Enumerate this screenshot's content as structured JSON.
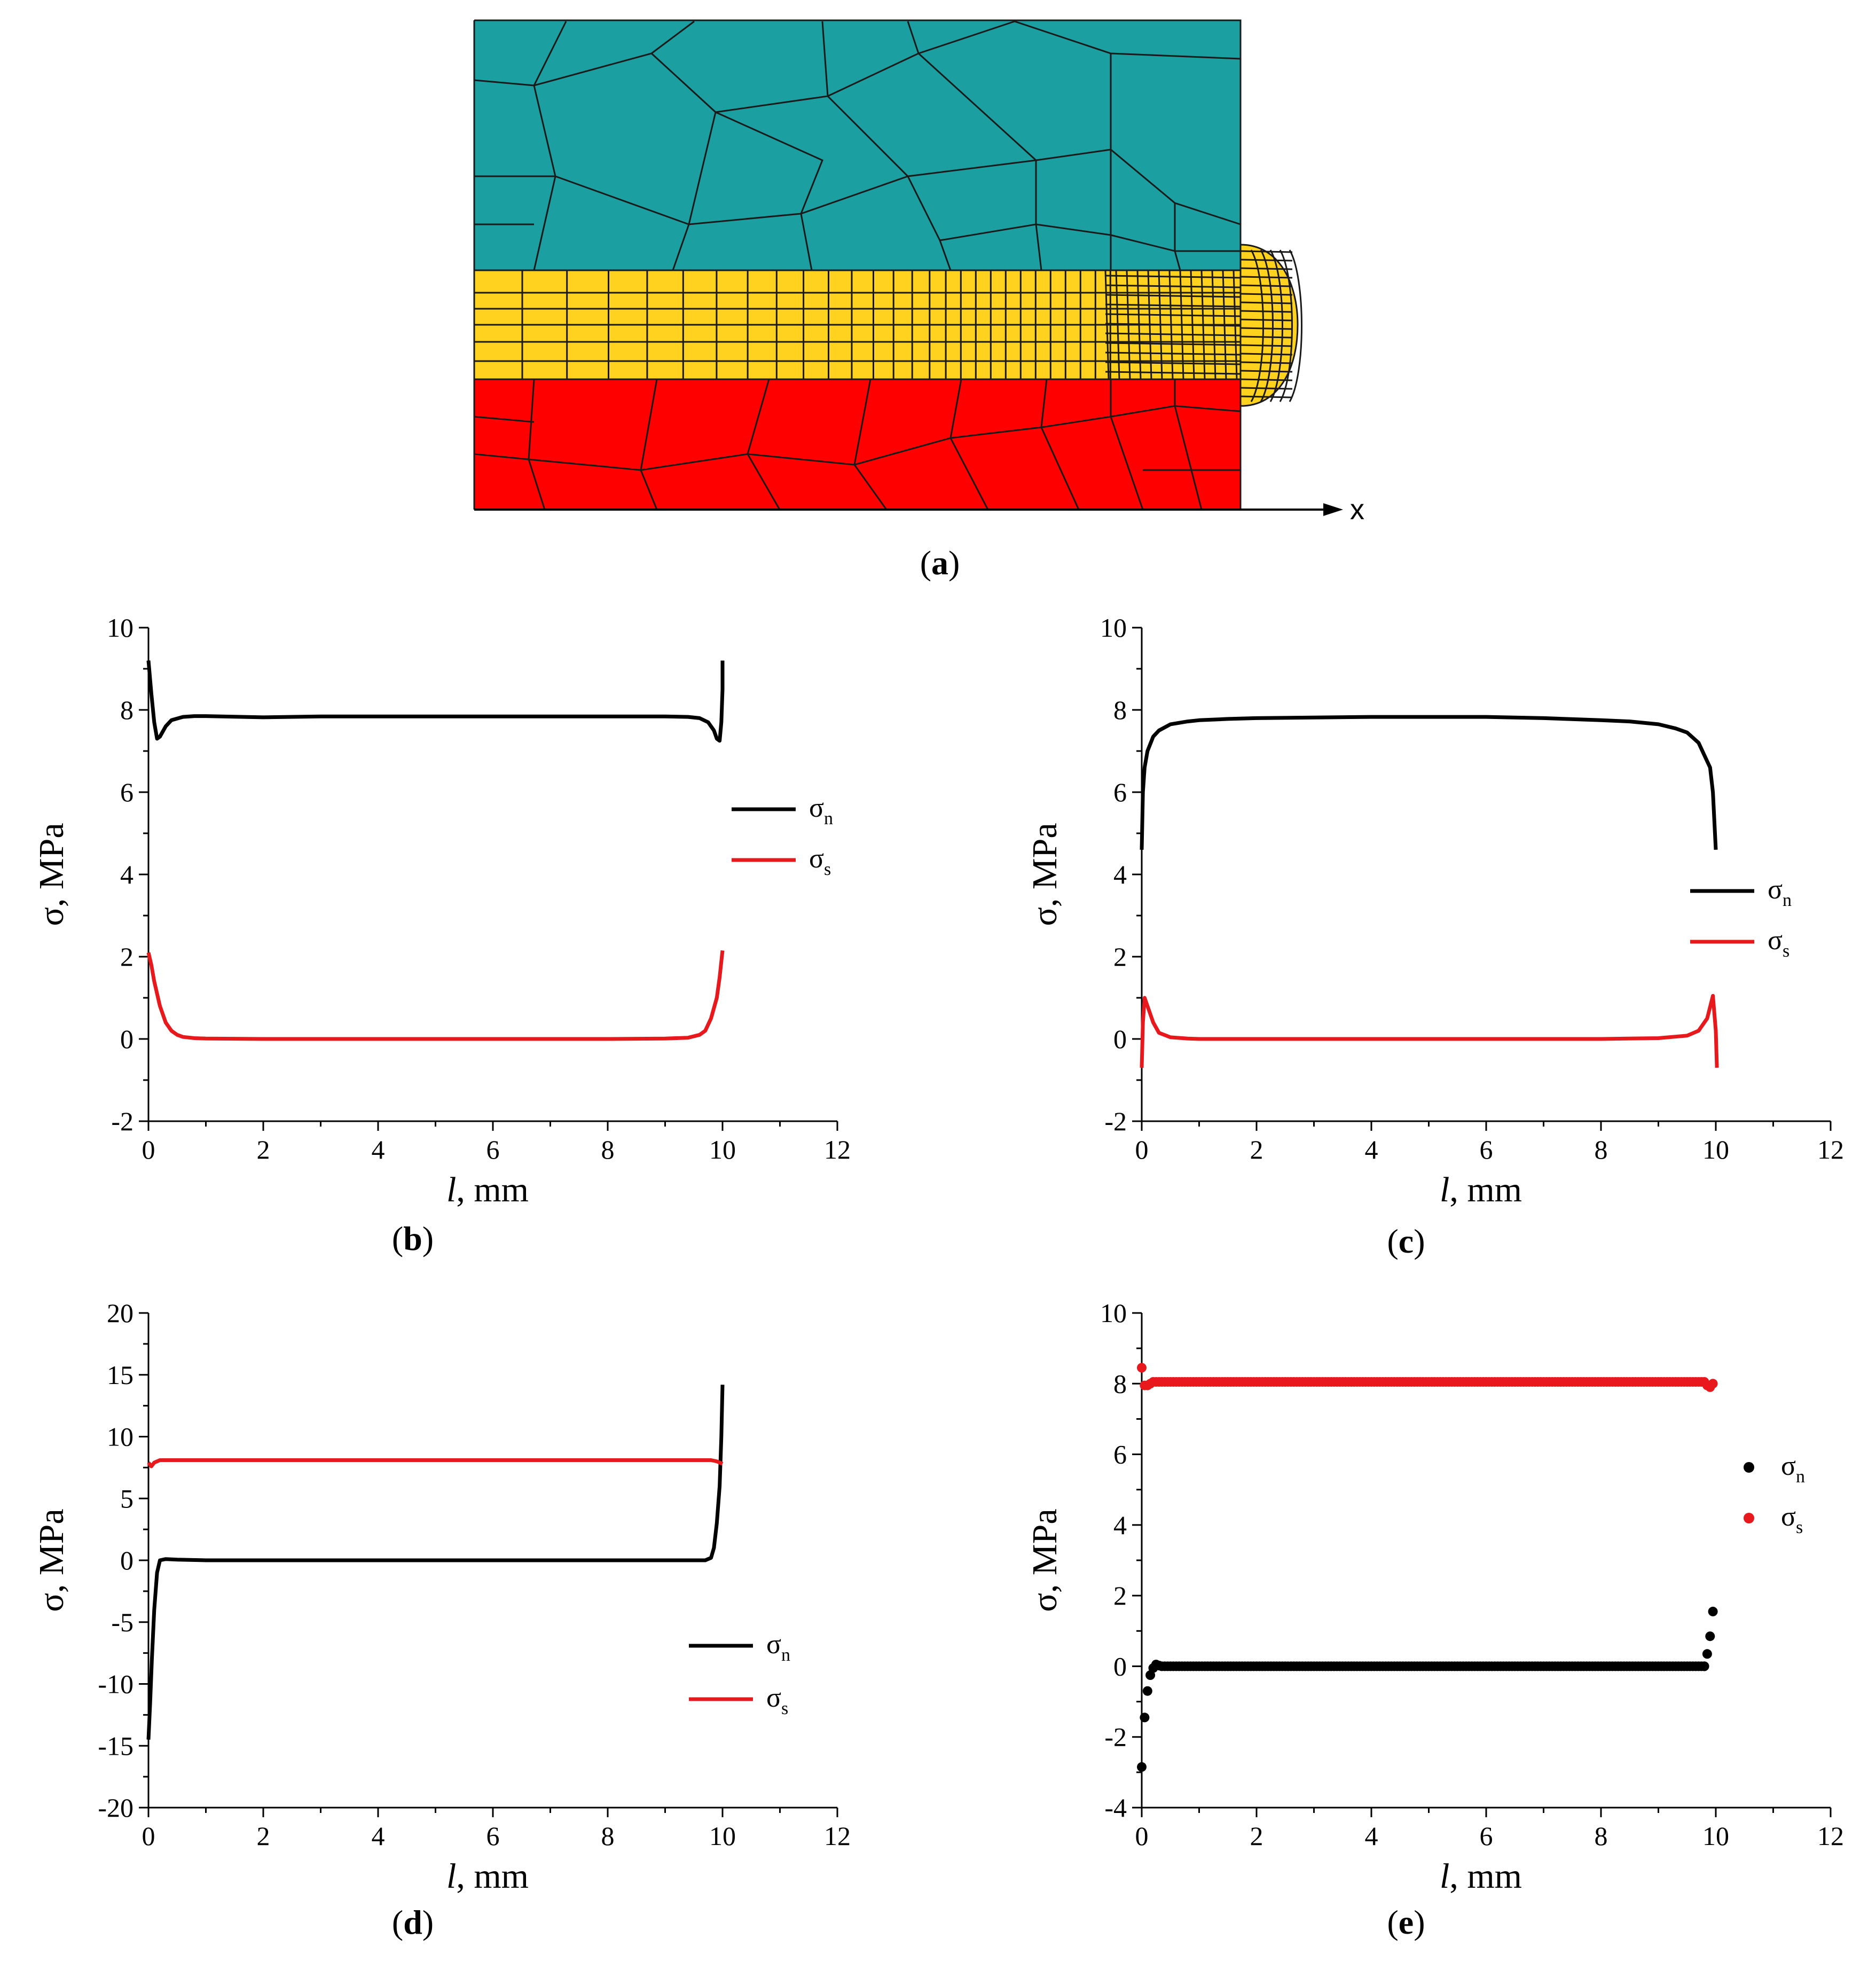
{
  "figure": {
    "panel_a": {
      "label_prefix": "(",
      "label": "a",
      "label_suffix": ")",
      "axis_label": "x",
      "colors": {
        "top": "#1b9fa0",
        "middle": "#ffd21f",
        "bottom": "#ff0000",
        "mesh": "#1a1a1a"
      }
    }
  },
  "chart_data": [
    {
      "id": "b",
      "type": "line",
      "label": "b",
      "xlabel_italic": "l",
      "xlabel_rest": ", mm",
      "ylabel": "σ, MPa",
      "xlim": [
        0,
        12
      ],
      "ylim": [
        -2,
        10
      ],
      "xticks": [
        "0",
        "2",
        "4",
        "6",
        "8",
        "10",
        "12"
      ],
      "yticks": [
        "-2",
        "0",
        "2",
        "4",
        "6",
        "8",
        "10"
      ],
      "legend": "right-middle",
      "series": [
        {
          "name": "σ",
          "sub": "n",
          "color": "#000000",
          "style": "line",
          "x": [
            0,
            0.05,
            0.1,
            0.15,
            0.2,
            0.3,
            0.4,
            0.6,
            0.8,
            1.0,
            2,
            3,
            4,
            5,
            6,
            7,
            8,
            9,
            9.4,
            9.6,
            9.75,
            9.85,
            9.9,
            9.95,
            9.98,
            10.0,
            10.0
          ],
          "y": [
            9.2,
            8.4,
            7.7,
            7.3,
            7.35,
            7.6,
            7.75,
            7.83,
            7.85,
            7.85,
            7.82,
            7.84,
            7.84,
            7.84,
            7.84,
            7.84,
            7.84,
            7.84,
            7.83,
            7.8,
            7.7,
            7.5,
            7.3,
            7.25,
            7.7,
            8.5,
            9.2
          ]
        },
        {
          "name": "σ",
          "sub": "s",
          "color": "#e8191d",
          "style": "line",
          "x": [
            0,
            0.05,
            0.1,
            0.2,
            0.3,
            0.4,
            0.5,
            0.6,
            0.8,
            1.0,
            2,
            4,
            6,
            8,
            9,
            9.4,
            9.6,
            9.7,
            9.8,
            9.9,
            9.95,
            10.0
          ],
          "y": [
            2.1,
            1.8,
            1.4,
            0.8,
            0.4,
            0.2,
            0.1,
            0.05,
            0.02,
            0.01,
            0,
            0,
            0,
            0,
            0.01,
            0.03,
            0.1,
            0.2,
            0.5,
            1.0,
            1.5,
            2.15
          ]
        }
      ]
    },
    {
      "id": "c",
      "type": "line",
      "label": "c",
      "xlabel_italic": "l",
      "xlabel_rest": ", mm",
      "ylabel": "σ, MPa",
      "xlim": [
        0,
        12
      ],
      "ylim": [
        -2,
        10
      ],
      "xticks": [
        "0",
        "2",
        "4",
        "6",
        "8",
        "10",
        "12"
      ],
      "yticks": [
        "-2",
        "0",
        "2",
        "4",
        "6",
        "8",
        "10"
      ],
      "legend": "right-middle",
      "series": [
        {
          "name": "σ",
          "sub": "n",
          "color": "#000000",
          "style": "line",
          "x": [
            0,
            0.02,
            0.05,
            0.1,
            0.2,
            0.3,
            0.5,
            0.8,
            1.0,
            1.5,
            2,
            4,
            6,
            7,
            8,
            8.5,
            9,
            9.3,
            9.5,
            9.7,
            9.8,
            9.9,
            9.95,
            10.0
          ],
          "y": [
            4.6,
            6.0,
            6.6,
            7.0,
            7.35,
            7.5,
            7.65,
            7.72,
            7.75,
            7.78,
            7.8,
            7.83,
            7.83,
            7.8,
            7.75,
            7.72,
            7.65,
            7.55,
            7.45,
            7.2,
            6.9,
            6.6,
            6.0,
            4.6
          ]
        },
        {
          "name": "σ",
          "sub": "s",
          "color": "#e8191d",
          "style": "line",
          "x": [
            0,
            0.02,
            0.05,
            0.1,
            0.2,
            0.3,
            0.5,
            0.8,
            1.0,
            2,
            4,
            6,
            8,
            9,
            9.5,
            9.7,
            9.85,
            9.95,
            10.0,
            10.02
          ],
          "y": [
            -0.7,
            0.4,
            1.0,
            0.8,
            0.4,
            0.15,
            0.04,
            0.01,
            0,
            0,
            0,
            0,
            0,
            0.02,
            0.08,
            0.2,
            0.5,
            1.05,
            0.2,
            -0.7
          ]
        }
      ]
    },
    {
      "id": "d",
      "type": "line",
      "label": "d",
      "xlabel_italic": "l",
      "xlabel_rest": ", mm",
      "ylabel": "σ, MPa",
      "xlim": [
        0,
        12
      ],
      "ylim": [
        -20,
        20
      ],
      "xticks": [
        "0",
        "2",
        "4",
        "6",
        "8",
        "10",
        "12"
      ],
      "yticks": [
        "-20",
        "-15",
        "-10",
        "-5",
        "0",
        "5",
        "10",
        "15",
        "20"
      ],
      "legend": "right-bottom",
      "series": [
        {
          "name": "σ",
          "sub": "n",
          "color": "#000000",
          "style": "line",
          "x": [
            0,
            0.03,
            0.06,
            0.1,
            0.15,
            0.2,
            0.3,
            0.5,
            1,
            2,
            4,
            6,
            8,
            9,
            9.5,
            9.7,
            9.8,
            9.85,
            9.9,
            9.95,
            9.98,
            10.0
          ],
          "y": [
            -14.5,
            -11.5,
            -8,
            -4,
            -1,
            0,
            0.1,
            0.05,
            0,
            0,
            0,
            0,
            0,
            0,
            0,
            0,
            0.2,
            1,
            3,
            6,
            10,
            14.2
          ]
        },
        {
          "name": "σ",
          "sub": "s",
          "color": "#e8191d",
          "style": "line",
          "x": [
            0,
            0.05,
            0.1,
            0.2,
            0.5,
            1,
            2,
            4,
            6,
            8,
            9,
            9.5,
            9.8,
            9.9,
            10.0
          ],
          "y": [
            7.9,
            7.6,
            7.9,
            8.1,
            8.1,
            8.1,
            8.1,
            8.1,
            8.1,
            8.1,
            8.1,
            8.1,
            8.1,
            8.0,
            7.8
          ]
        }
      ]
    },
    {
      "id": "e",
      "type": "scatter",
      "label": "e",
      "xlabel_italic": "l",
      "xlabel_rest": ", mm",
      "ylabel": "σ, MPa",
      "xlim": [
        0,
        12
      ],
      "ylim": [
        -4,
        10
      ],
      "xticks": [
        "0",
        "2",
        "4",
        "6",
        "8",
        "10",
        "12"
      ],
      "yticks": [
        "-4",
        "-2",
        "0",
        "2",
        "4",
        "6",
        "8",
        "10"
      ],
      "legend": "right-middle",
      "series": [
        {
          "name": "σ",
          "sub": "n",
          "color": "#000000",
          "style": "points",
          "x": [
            0.0,
            0.05,
            0.1,
            0.15,
            0.2,
            0.25,
            0.3,
            9.8,
            9.85,
            9.9,
            9.95
          ],
          "y": [
            -2.85,
            -1.45,
            -0.7,
            -0.25,
            -0.05,
            0.05,
            0.02,
            0.0,
            0.35,
            0.85,
            1.55
          ],
          "band": {
            "x0": 0.35,
            "x1": 9.8,
            "y": 0.0,
            "step": 0.05
          }
        },
        {
          "name": "σ",
          "sub": "s",
          "color": "#e8191d",
          "style": "points",
          "x": [
            0.0,
            0.05,
            0.1,
            0.15,
            9.85,
            9.9,
            9.95
          ],
          "y": [
            8.45,
            7.95,
            7.95,
            8.0,
            7.95,
            7.9,
            8.0
          ],
          "band": {
            "x0": 0.2,
            "x1": 9.8,
            "y": 8.05,
            "step": 0.05
          }
        }
      ]
    }
  ]
}
